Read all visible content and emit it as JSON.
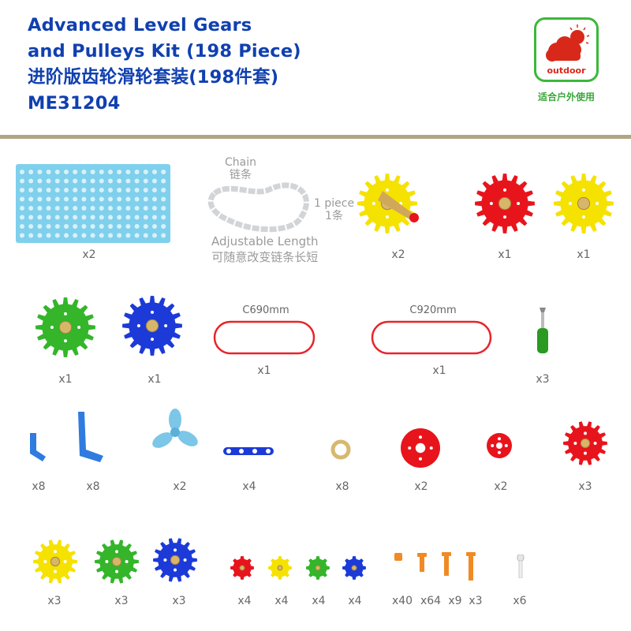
{
  "header": {
    "title_en_1": "Advanced Level Gears",
    "title_en_2": "and Pulleys Kit (198 Piece)",
    "title_cn": "进阶版齿轮滑轮套装(198件套)",
    "model": "ME31204"
  },
  "badge": {
    "icon": "cloud-sun-icon",
    "label": "outdoor",
    "caption": "适合户外使用"
  },
  "chain": {
    "name_en": "Chain",
    "name_cn": "链条",
    "qty_en": "1 piece",
    "qty_cn": "1条",
    "note_en": "Adjustable Length",
    "note_cn": "可随意改变链条长短"
  },
  "colors": {
    "title": "#1040b0",
    "yellow": "#f5e200",
    "red": "#e8141c",
    "green": "#34b52a",
    "blue": "#1c3ad8",
    "plate": "#7fd0ec",
    "band": "#e8242a",
    "divider": "#b2a584"
  },
  "items": [
    {
      "name": "base-plate",
      "qty": "x2"
    },
    {
      "name": "crank-gear-yellow",
      "qty": "x2"
    },
    {
      "name": "gear-red-large",
      "qty": "x1"
    },
    {
      "name": "gear-yellow-large",
      "qty": "x1"
    },
    {
      "name": "gear-green-large",
      "qty": "x1"
    },
    {
      "name": "gear-blue-large",
      "qty": "x1"
    },
    {
      "name": "band-c690",
      "qty": "x1",
      "size": "C690mm"
    },
    {
      "name": "band-c920",
      "qty": "x1",
      "size": "C920mm"
    },
    {
      "name": "screwdriver",
      "qty": "x3"
    },
    {
      "name": "bracket-small",
      "qty": "x8"
    },
    {
      "name": "bracket-l",
      "qty": "x8"
    },
    {
      "name": "propeller",
      "qty": "x2"
    },
    {
      "name": "link-bar",
      "qty": "x4"
    },
    {
      "name": "washer-ring",
      "qty": "x8"
    },
    {
      "name": "pulley-red-large",
      "qty": "x2"
    },
    {
      "name": "pulley-red-small",
      "qty": "x2"
    },
    {
      "name": "gear-red-medium",
      "qty": "x3"
    },
    {
      "name": "gear-yellow-medium",
      "qty": "x3"
    },
    {
      "name": "gear-green-medium",
      "qty": "x3"
    },
    {
      "name": "gear-blue-medium",
      "qty": "x3"
    },
    {
      "name": "gear-red-small",
      "qty": "x4"
    },
    {
      "name": "gear-yellow-small",
      "qty": "x4"
    },
    {
      "name": "gear-green-small",
      "qty": "x4"
    },
    {
      "name": "gear-blue-small",
      "qty": "x4"
    },
    {
      "name": "nut",
      "qty": "x40"
    },
    {
      "name": "screw-short",
      "qty": "x64"
    },
    {
      "name": "screw-medium",
      "qty": "x9"
    },
    {
      "name": "screw-long",
      "qty": "x3"
    },
    {
      "name": "white-peg",
      "qty": "x6"
    }
  ]
}
